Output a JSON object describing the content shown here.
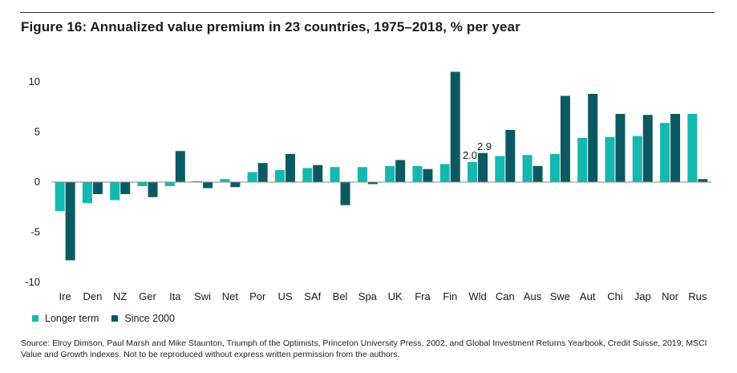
{
  "title": "Figure 16: Annualized value premium in 23 countries, 1975–2018, % per year",
  "source": "Source: Elroy Dimson, Paul Marsh and Mike Staunton, Triumph of the Optimists, Princeton University Press, 2002, and Global Investment Returns Yearbook, Credit Suisse, 2019; MSCI Value and Growth indexes.  Not to be reproduced without express written permission from the authors.",
  "chart_data": {
    "type": "bar",
    "categories": [
      "Ire",
      "Den",
      "NZ",
      "Ger",
      "Ita",
      "Swi",
      "Net",
      "Por",
      "US",
      "SAf",
      "Bel",
      "Spa",
      "UK",
      "Fra",
      "Fin",
      "Wld",
      "Can",
      "Aus",
      "Swe",
      "Aut",
      "Chi",
      "Jap",
      "Nor",
      "Rus"
    ],
    "series": [
      {
        "name": "Longer term",
        "color": "#14b8b0",
        "values": [
          -2.9,
          -2.1,
          -1.8,
          -0.4,
          -0.4,
          0.1,
          0.3,
          1.0,
          1.2,
          1.4,
          1.5,
          1.5,
          1.6,
          1.6,
          1.8,
          2.0,
          2.6,
          2.7,
          2.8,
          4.4,
          4.5,
          4.6,
          5.9,
          6.8
        ]
      },
      {
        "name": "Since 2000",
        "color": "#0b5a63",
        "values": [
          -7.8,
          -1.2,
          -1.2,
          -1.5,
          3.1,
          -0.6,
          -0.5,
          1.9,
          2.8,
          1.7,
          -2.3,
          -0.2,
          2.2,
          1.3,
          11.0,
          2.9,
          5.2,
          1.6,
          8.6,
          8.8,
          6.8,
          6.7,
          6.8,
          0.3
        ]
      }
    ],
    "ylim": [
      -10,
      12
    ],
    "yticks": [
      10,
      5,
      0,
      -5,
      -10
    ],
    "ytick_labels": [
      "10",
      "5",
      "0",
      "-5",
      "-10"
    ],
    "data_labels": [
      {
        "category": "Wld",
        "series": "Longer term",
        "text": "2.0"
      },
      {
        "category": "Wld",
        "series": "Since 2000",
        "text": "2.9"
      }
    ],
    "legend": {
      "placement": "bottom-left",
      "entries": [
        "Longer term",
        "Since 2000"
      ]
    },
    "grid": false,
    "xlabel": "",
    "ylabel": ""
  }
}
